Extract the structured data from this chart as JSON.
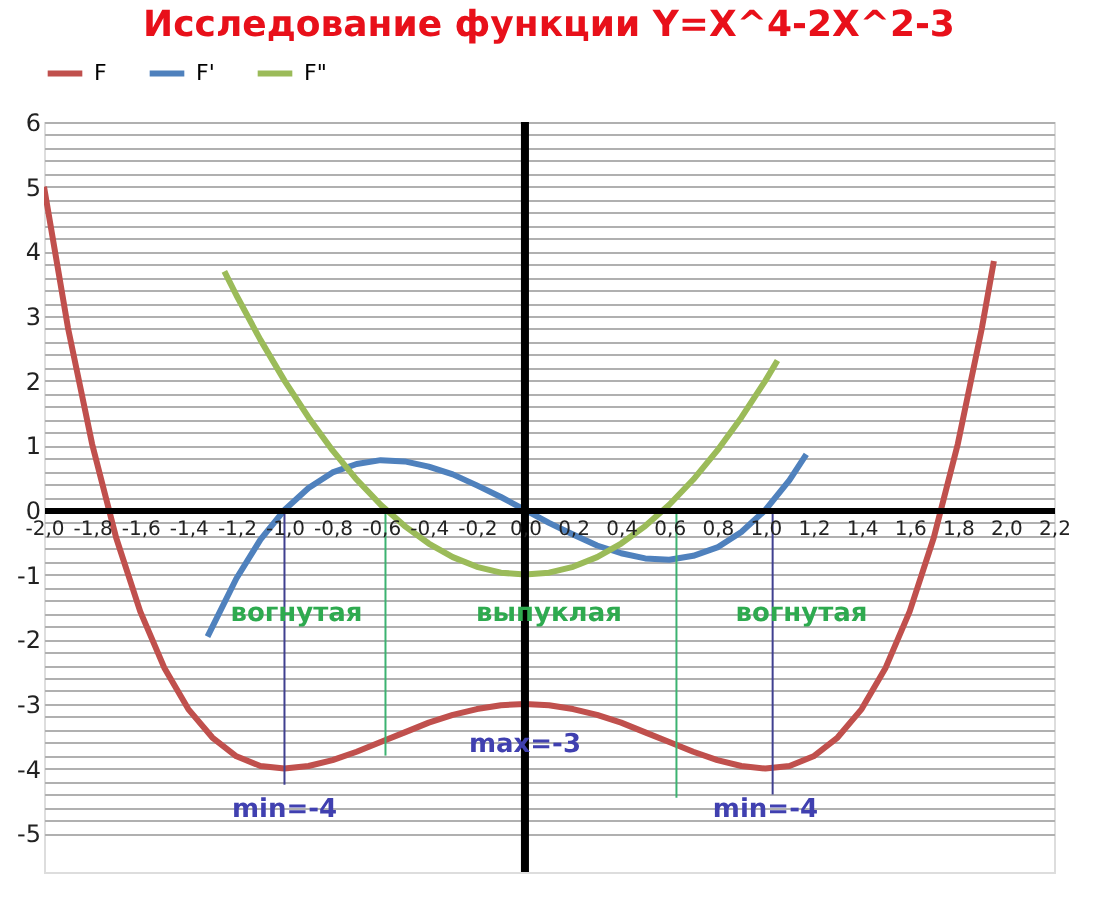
{
  "chart_data": {
    "type": "line",
    "title": "Исследование функции Y=X^4-2X^2-3",
    "xlim": [
      -2.0,
      2.2
    ],
    "xticks": [
      {
        "value": -2.0,
        "label": "-2,0"
      },
      {
        "value": -1.8,
        "label": "-1,8"
      },
      {
        "value": -1.6,
        "label": "-1,6"
      },
      {
        "value": -1.4,
        "label": "-1,4"
      },
      {
        "value": -1.2,
        "label": "-1,2"
      },
      {
        "value": -1.0,
        "label": "-1,0"
      },
      {
        "value": -0.8,
        "label": "-0,8"
      },
      {
        "value": -0.6,
        "label": "-0,6"
      },
      {
        "value": -0.4,
        "label": "-0,4"
      },
      {
        "value": -0.2,
        "label": "-0,2"
      },
      {
        "value": 0.0,
        "label": "0,0"
      },
      {
        "value": 0.2,
        "label": "0,2"
      },
      {
        "value": 0.4,
        "label": "0,4"
      },
      {
        "value": 0.6,
        "label": "0,6"
      },
      {
        "value": 0.8,
        "label": "0,8"
      },
      {
        "value": 1.0,
        "label": "1,0"
      },
      {
        "value": 1.2,
        "label": "1,2"
      },
      {
        "value": 1.4,
        "label": "1,4"
      },
      {
        "value": 1.6,
        "label": "1,6"
      },
      {
        "value": 1.8,
        "label": "1,8"
      },
      {
        "value": 2.0,
        "label": "2,0"
      },
      {
        "value": 2.2,
        "label": "2,2"
      }
    ],
    "ylim": [
      -5.6,
      6
    ],
    "yticks": [
      -5,
      {
        "value": -4.8,
        "label": null
      },
      {
        "value": -4.6,
        "label": null
      },
      {
        "value": -4.4,
        "label": null
      },
      {
        "value": -4.2,
        "label": null
      },
      -4,
      {
        "value": -3.8,
        "label": null
      },
      {
        "value": -3.6,
        "label": null
      },
      {
        "value": -3.4,
        "label": null
      },
      {
        "value": -3.2,
        "label": null
      },
      -3,
      {
        "value": -2.8,
        "label": null
      },
      {
        "value": -2.6,
        "label": null
      },
      {
        "value": -2.4,
        "label": null
      },
      {
        "value": -2.2,
        "label": null
      },
      -2,
      {
        "value": -1.8,
        "label": null
      },
      {
        "value": -1.6,
        "label": null
      },
      {
        "value": -1.4,
        "label": null
      },
      {
        "value": -1.2,
        "label": null
      },
      -1,
      {
        "value": -0.8,
        "label": null
      },
      {
        "value": -0.6,
        "label": null
      },
      {
        "value": -0.4,
        "label": null
      },
      {
        "value": -0.2,
        "label": null
      },
      0,
      {
        "value": 0.2,
        "label": null
      },
      {
        "value": 0.4,
        "label": null
      },
      {
        "value": 0.6,
        "label": null
      },
      {
        "value": 0.8,
        "label": null
      },
      1,
      {
        "value": 1.2,
        "label": null
      },
      {
        "value": 1.4,
        "label": null
      },
      {
        "value": 1.6,
        "label": null
      },
      {
        "value": 1.8,
        "label": null
      },
      2,
      {
        "value": 2.2,
        "label": null
      },
      {
        "value": 2.4,
        "label": null
      },
      {
        "value": 2.6,
        "label": null
      },
      {
        "value": 2.8,
        "label": null
      },
      3,
      {
        "value": 3.2,
        "label": null
      },
      {
        "value": 3.4,
        "label": null
      },
      {
        "value": 3.6,
        "label": null
      },
      {
        "value": 3.8,
        "label": null
      },
      4,
      {
        "value": 4.2,
        "label": null
      },
      {
        "value": 4.4,
        "label": null
      },
      {
        "value": 4.6,
        "label": null
      },
      {
        "value": 4.8,
        "label": null
      },
      5,
      {
        "value": 5.2,
        "label": null
      },
      {
        "value": 5.4,
        "label": null
      },
      {
        "value": 5.6,
        "label": null
      },
      {
        "value": 5.8,
        "label": null
      },
      6
    ],
    "grid": "y",
    "legend": "top",
    "marker": "none",
    "line_style": "solid",
    "series": [
      {
        "name": "F",
        "color": "#c0504d",
        "x": [
          -2.0,
          -1.9,
          -1.8,
          -1.7,
          -1.6,
          -1.5,
          -1.4,
          -1.3,
          -1.2,
          -1.1,
          -1.0,
          -0.9,
          -0.8,
          -0.7,
          -0.6,
          -0.5,
          -0.4,
          -0.3,
          -0.2,
          -0.1,
          0.0,
          0.1,
          0.2,
          0.3,
          0.4,
          0.5,
          0.6,
          0.7,
          0.8,
          0.9,
          1.0,
          1.1,
          1.2,
          1.3,
          1.4,
          1.5,
          1.6,
          1.7,
          1.8,
          1.9,
          1.95
        ],
        "values": [
          5.0,
          2.81,
          1.02,
          -0.43,
          -1.57,
          -2.44,
          -3.08,
          -3.52,
          -3.81,
          -3.96,
          -4.0,
          -3.96,
          -3.87,
          -3.74,
          -3.59,
          -3.44,
          -3.29,
          -3.17,
          -3.08,
          -3.02,
          -3.0,
          -3.02,
          -3.08,
          -3.17,
          -3.29,
          -3.44,
          -3.59,
          -3.74,
          -3.87,
          -3.96,
          -4.0,
          -3.96,
          -3.81,
          -3.52,
          -3.08,
          -2.44,
          -1.57,
          -0.43,
          1.02,
          2.81,
          3.85
        ]
      },
      {
        "name": "F'",
        "color": "#4f81bd",
        "x": [
          -1.32,
          -1.2,
          -1.1,
          -1.0,
          -0.9,
          -0.8,
          -0.7,
          -0.6,
          -0.5,
          -0.4,
          -0.3,
          -0.2,
          -0.1,
          0.0,
          0.1,
          0.2,
          0.3,
          0.4,
          0.5,
          0.6,
          0.7,
          0.8,
          0.9,
          1.0,
          1.1,
          1.17
        ],
        "values": [
          -1.96,
          -1.06,
          -0.46,
          0.0,
          0.34,
          0.58,
          0.71,
          0.77,
          0.75,
          0.67,
          0.55,
          0.38,
          0.2,
          0.0,
          -0.2,
          -0.38,
          -0.55,
          -0.67,
          -0.75,
          -0.77,
          -0.71,
          -0.58,
          -0.34,
          0.0,
          0.46,
          0.86
        ]
      },
      {
        "name": "F\"",
        "color": "#9bbb59",
        "x": [
          -1.25,
          -1.2,
          -1.1,
          -1.0,
          -0.9,
          -0.8,
          -0.7,
          -0.6,
          -0.5,
          -0.4,
          -0.3,
          -0.2,
          -0.1,
          0.0,
          0.1,
          0.2,
          0.3,
          0.4,
          0.5,
          0.6,
          0.7,
          0.8,
          0.9,
          1.0,
          1.05
        ],
        "values": [
          3.69,
          3.32,
          2.63,
          2.0,
          1.43,
          0.92,
          0.47,
          0.08,
          -0.25,
          -0.52,
          -0.73,
          -0.88,
          -0.97,
          -1.0,
          -0.97,
          -0.88,
          -0.73,
          -0.52,
          -0.25,
          0.08,
          0.47,
          0.92,
          1.43,
          2.0,
          2.31
        ]
      },
      {
        "color": "#404090",
        "x": [
          -1.0,
          -1.0
        ],
        "values": [
          0,
          -4.25
        ]
      },
      {
        "color": "#404090",
        "x": [
          1.03,
          1.03
        ],
        "values": [
          0,
          -4.4
        ]
      },
      {
        "color": "#3cb371",
        "x": [
          -0.58,
          -0.58
        ],
        "values": [
          0,
          -3.8
        ]
      },
      {
        "color": "#3cb371",
        "x": [
          0.63,
          0.63
        ],
        "values": [
          0,
          -4.45
        ]
      }
    ],
    "ref_lines": [
      {
        "axis": "x",
        "value": 0,
        "color": "#000000"
      }
    ],
    "annotations": [
      "вогнутая",
      "выпуклая",
      "вогнутая",
      {
        "text": "max=-3",
        "x": 0.0,
        "y": -3.0
      },
      {
        "text": "min=-4",
        "x": -1.0,
        "y": -4.0
      },
      {
        "text": "min=-4",
        "x": 1.0,
        "y": -4.0
      }
    ]
  }
}
